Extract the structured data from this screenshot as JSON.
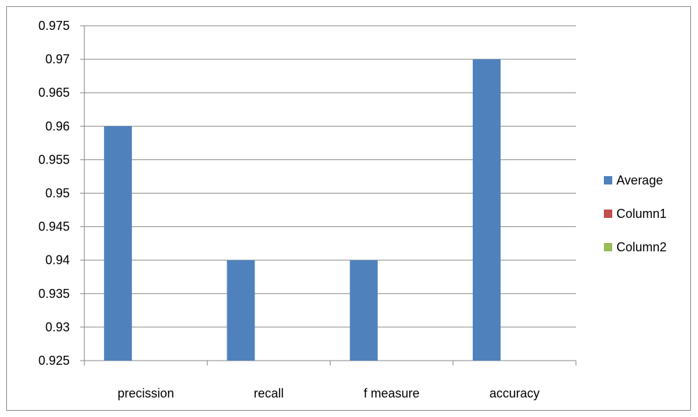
{
  "chart_data": {
    "type": "bar",
    "categories": [
      "precission",
      "recall",
      "f measure",
      "accuracy"
    ],
    "series": [
      {
        "name": "Average",
        "values": [
          0.96,
          0.94,
          0.94,
          0.97
        ],
        "color": "#4F81BD"
      },
      {
        "name": "Column1",
        "values": [
          null,
          null,
          null,
          null
        ],
        "color": "#C0504D"
      },
      {
        "name": "Column2",
        "values": [
          null,
          null,
          null,
          null
        ],
        "color": "#9BBB59"
      }
    ],
    "ylim": [
      0.925,
      0.975
    ],
    "yticks": [
      "0.925",
      "0.93",
      "0.935",
      "0.94",
      "0.945",
      "0.95",
      "0.955",
      "0.96",
      "0.965",
      "0.97",
      "0.975"
    ],
    "title": "",
    "xlabel": "",
    "ylabel": "",
    "grid": true,
    "legend_position": "right"
  }
}
